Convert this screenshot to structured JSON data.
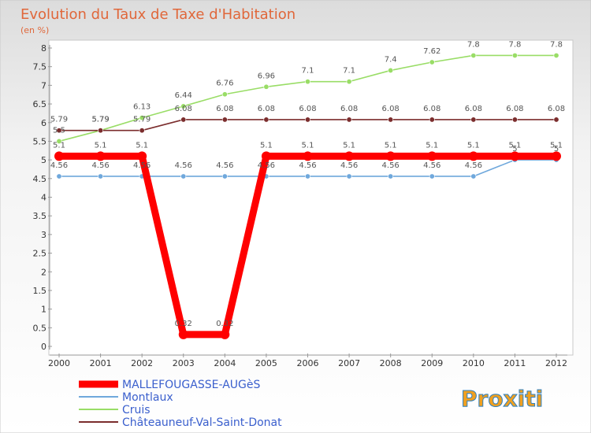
{
  "chart_data": {
    "type": "line",
    "title": "Evolution du Taux de Taxe d'Habitation",
    "subtitle": "(en %)",
    "x": [
      "2000",
      "2001",
      "2002",
      "2003",
      "2004",
      "2005",
      "2006",
      "2007",
      "2008",
      "2009",
      "2010",
      "2011",
      "2012"
    ],
    "ylim": [
      0,
      8
    ],
    "yticks": [
      "0",
      "0.5",
      "1",
      "1.5",
      "2",
      "2.5",
      "3",
      "3.5",
      "4",
      "4.5",
      "5",
      "5.5",
      "6",
      "6.5",
      "7",
      "7.5",
      "8"
    ],
    "grid": false,
    "legend_position": "bottom-left",
    "series": [
      {
        "name": "MALLEFOUGASSE-AUGèS",
        "color": "#ff0000",
        "values": [
          5.1,
          5.1,
          5.1,
          0.32,
          0.32,
          5.1,
          5.1,
          5.1,
          5.1,
          5.1,
          5.1,
          5.1,
          5.1
        ],
        "labels": [
          "5.1",
          "5.1",
          "5.1",
          "0.32",
          "0.32",
          "5.1",
          "5.1",
          "5.1",
          "5.1",
          "5.1",
          "5.1",
          "5.1",
          "5.1"
        ]
      },
      {
        "name": "Montlaux",
        "color": "#6fa8dc",
        "values": [
          4.56,
          4.56,
          4.56,
          4.56,
          4.56,
          4.56,
          4.56,
          4.56,
          4.56,
          4.56,
          4.56,
          5,
          5
        ],
        "labels": [
          "4.56",
          "4.56",
          "4.56",
          "4.56",
          "4.56",
          "4.56",
          "4.56",
          "4.56",
          "4.56",
          "4.56",
          "4.56",
          "5",
          "5"
        ]
      },
      {
        "name": "Cruis",
        "color": "#99dd66",
        "values": [
          5.5,
          5.79,
          6.13,
          6.44,
          6.76,
          6.96,
          7.1,
          7.1,
          7.4,
          7.62,
          7.8,
          7.8,
          7.8
        ],
        "labels": [
          "5.5",
          "5.79",
          "6.13",
          "6.44",
          "6.76",
          "6.96",
          "7.1",
          "7.1",
          "7.4",
          "7.62",
          "7.8",
          "7.8",
          "7.8"
        ]
      },
      {
        "name": "Châteauneuf-Val-Saint-Donat",
        "color": "#7b2d2d",
        "values": [
          5.79,
          5.79,
          5.79,
          6.08,
          6.08,
          6.08,
          6.08,
          6.08,
          6.08,
          6.08,
          6.08,
          6.08,
          6.08
        ],
        "labels": [
          "5.79",
          "5.79",
          "5.79",
          "6.08",
          "6.08",
          "6.08",
          "6.08",
          "6.08",
          "6.08",
          "6.08",
          "6.08",
          "6.08",
          "6.08"
        ]
      }
    ]
  },
  "brand": {
    "logo_text": "Proxiti"
  }
}
